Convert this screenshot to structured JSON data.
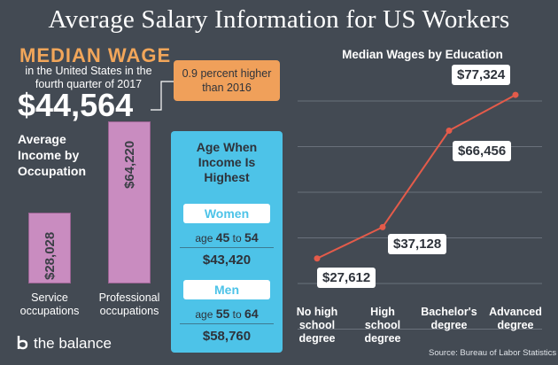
{
  "title": "Average Salary Information for US Workers",
  "median_wage": {
    "heading": "MEDIAN WAGE",
    "subtext": "in the United States in the fourth quarter of 2017",
    "value": "$44,564",
    "change_note": "0.9 percent higher than 2016"
  },
  "occupation": {
    "heading": "Average Income by Occupation"
  },
  "age_income": {
    "title": "Age When Income Is Highest",
    "women": {
      "label": "Women",
      "age_prefix": "age",
      "age_from": "45",
      "age_to_word": "to",
      "age_to": "54",
      "value": "$43,420"
    },
    "men": {
      "label": "Men",
      "age_prefix": "age",
      "age_from": "55",
      "age_to_word": "to",
      "age_to": "64",
      "value": "$58,760"
    }
  },
  "brand": "the balance",
  "source": "Source: Bureau of Labor Statistics",
  "colors": {
    "background": "#434a53",
    "accent_orange": "#f2a65a",
    "bar_purple": "#c98cc0",
    "age_blue": "#4dc3e8",
    "line_red": "#e45b4a"
  },
  "chart_data": [
    {
      "type": "bar",
      "title": "Average Income by Occupation",
      "categories": [
        "Service occupations",
        "Professional occupations"
      ],
      "values": [
        28028,
        64220
      ],
      "value_labels": [
        "$28,028",
        "$64,220"
      ]
    },
    {
      "type": "line",
      "title": "Median Wages by Education",
      "categories": [
        "No high school degree",
        "High school degree",
        "Bachelor's degree",
        "Advanced degree"
      ],
      "values": [
        27612,
        37128,
        66456,
        77324
      ],
      "value_labels": [
        "$27,612",
        "$37,128",
        "$66,456",
        "$77,324"
      ],
      "grid": true
    }
  ]
}
